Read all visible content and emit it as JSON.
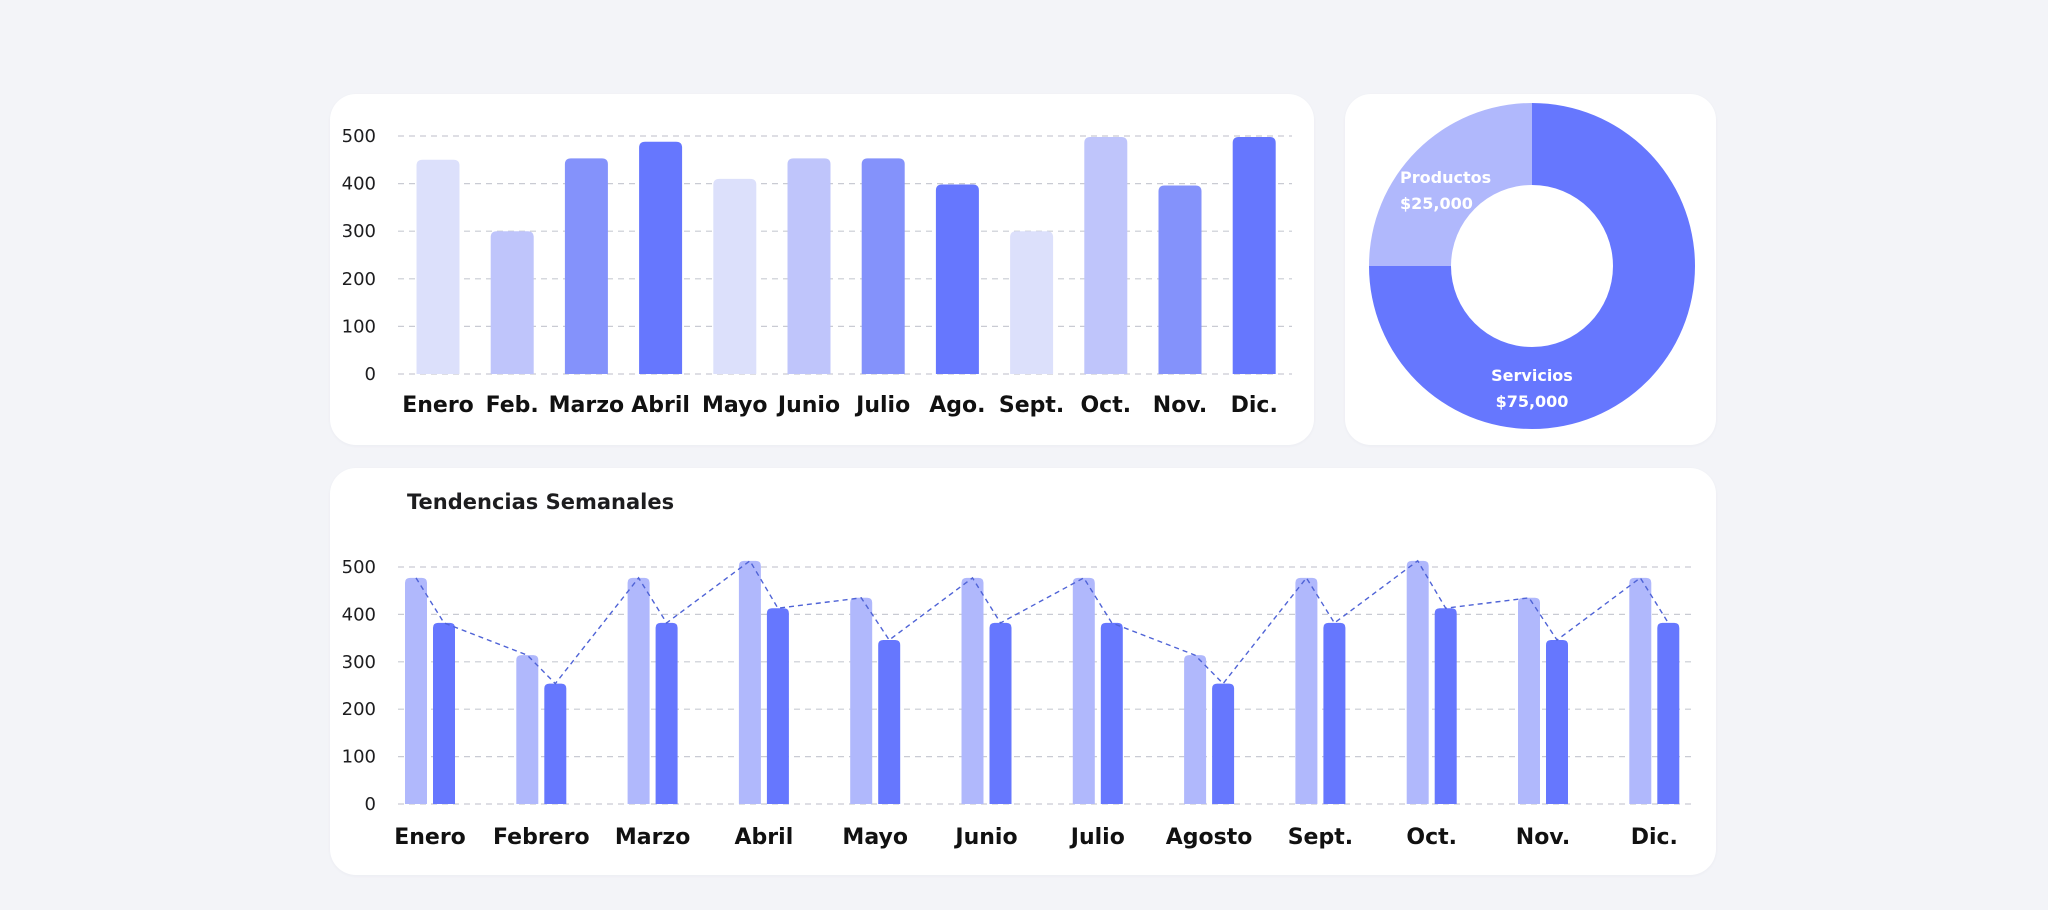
{
  "colors": {
    "page_background": "#f3f4f8",
    "card_background": "#ffffff",
    "grid": "#c9cbd3",
    "trend_line": "#4f63d6",
    "blue_lightest": "#dce0fb",
    "blue_light": "#bfc5fb",
    "blue_medium": "#8492fb",
    "blue_strong": "#6677fe",
    "blue_soft": "#b0b8fc"
  },
  "chart_data": [
    {
      "id": "monthly",
      "type": "bar",
      "title": "",
      "xlabel": "",
      "ylabel": "",
      "ylim": [
        0,
        500
      ],
      "yticks": [
        "0",
        "100",
        "200",
        "300",
        "400",
        "500"
      ],
      "grid": true,
      "categories": [
        "Enero",
        "Feb.",
        "Marzo",
        "Abril",
        "Mayo",
        "Junio",
        "Julio",
        "Ago.",
        "Sept.",
        "Oct.",
        "Nov.",
        "Dic."
      ],
      "values": [
        450,
        300,
        453,
        488,
        410,
        453,
        453,
        398,
        300,
        498,
        396,
        498
      ],
      "bar_colors": [
        "#dce0fb",
        "#bfc5fb",
        "#8492fb",
        "#6677fe",
        "#dce0fb",
        "#bfc5fb",
        "#8492fb",
        "#6677fe",
        "#dce0fb",
        "#bfc5fb",
        "#8492fb",
        "#6677fe"
      ]
    },
    {
      "id": "split",
      "type": "pie",
      "title": "",
      "donut": true,
      "slices": [
        {
          "label": "Productos",
          "value_label": "$25,000",
          "value": 25000,
          "color": "#b0b8fc"
        },
        {
          "label": "Servicios",
          "value_label": "$75,000",
          "value": 75000,
          "color": "#6677fe"
        }
      ]
    },
    {
      "id": "weekly",
      "type": "bar",
      "title": "Tendencias Semanales",
      "xlabel": "",
      "ylabel": "",
      "ylim": [
        0,
        500
      ],
      "yticks": [
        "0",
        "100",
        "200",
        "300",
        "400",
        "500"
      ],
      "grid": true,
      "categories": [
        "Enero",
        "Febrero",
        "Marzo",
        "Abril",
        "Mayo",
        "Junio",
        "Julio",
        "Agosto",
        "Sept.",
        "Oct.",
        "Nov.",
        "Dic."
      ],
      "series": [
        {
          "values": [
            477,
            314,
            477,
            513,
            435,
            477,
            477,
            314,
            477,
            513,
            435,
            477
          ],
          "color": "#b0b8fc"
        },
        {
          "values": [
            382,
            254,
            382,
            413,
            346,
            382,
            382,
            254,
            382,
            413,
            346,
            382
          ],
          "color": "#6677fe"
        }
      ],
      "trend_line": {
        "style": "dashed",
        "color": "#4f63d6"
      }
    }
  ]
}
